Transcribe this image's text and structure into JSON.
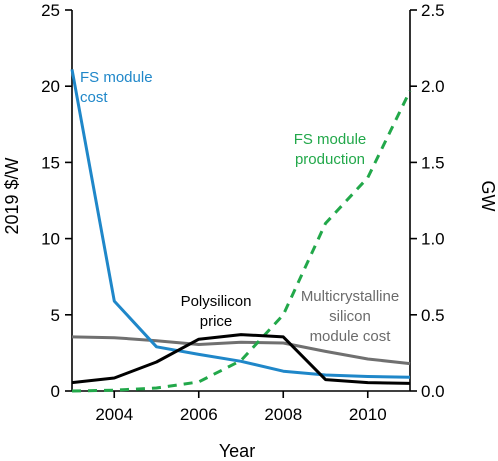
{
  "chart_data": {
    "type": "line",
    "xlabel": "Year",
    "ylabel_left": "2019 $/W",
    "ylabel_right": "GW",
    "xlim": [
      2003,
      2011
    ],
    "ylim_left": [
      0,
      25
    ],
    "ylim_right": [
      0,
      2.5
    ],
    "x_ticks": [
      2004,
      2006,
      2008,
      2010
    ],
    "y_ticks_left": [
      0,
      5,
      10,
      15,
      20,
      25
    ],
    "y_ticks_right": [
      "0.0",
      "0.5",
      "1.0",
      "1.5",
      "2.0",
      "2.5"
    ],
    "grid": false,
    "series": [
      {
        "name": "FS module cost",
        "label_lines": [
          "FS module",
          "cost"
        ],
        "axis": "left",
        "color": "#1f87c9",
        "dash": "solid",
        "x": [
          2003,
          2004,
          2005,
          2006,
          2007,
          2008,
          2009,
          2010,
          2011
        ],
        "y": [
          21.1,
          5.9,
          2.9,
          2.4,
          1.95,
          1.3,
          1.05,
          0.95,
          0.9
        ]
      },
      {
        "name": "Polysilicon price",
        "label_lines": [
          "Polysilicon",
          "price"
        ],
        "axis": "left",
        "color": "#000000",
        "dash": "solid",
        "x": [
          2003,
          2004,
          2005,
          2006,
          2007,
          2008,
          2009,
          2010,
          2011
        ],
        "y": [
          0.55,
          0.85,
          1.9,
          3.4,
          3.7,
          3.55,
          0.75,
          0.55,
          0.5
        ]
      },
      {
        "name": "Multicrystalline silicon module cost",
        "label_lines": [
          "Multicrystalline",
          "silicon",
          "module cost"
        ],
        "axis": "left",
        "color": "#707070",
        "dash": "solid",
        "x": [
          2003,
          2004,
          2005,
          2006,
          2007,
          2008,
          2009,
          2010,
          2011
        ],
        "y": [
          3.55,
          3.5,
          3.3,
          3.05,
          3.2,
          3.15,
          2.6,
          2.1,
          1.8
        ]
      },
      {
        "name": "FS module production",
        "label_lines": [
          "FS module",
          "production"
        ],
        "axis": "right",
        "color": "#22a84a",
        "dash": "dashed",
        "x": [
          2003,
          2004,
          2005,
          2006,
          2007,
          2008,
          2009,
          2010,
          2011
        ],
        "y": [
          0.0,
          0.005,
          0.02,
          0.06,
          0.2,
          0.5,
          1.1,
          1.4,
          1.97
        ]
      }
    ]
  }
}
